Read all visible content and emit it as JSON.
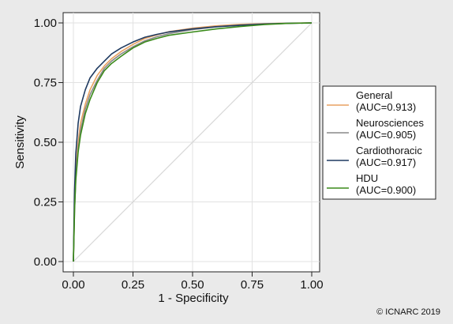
{
  "chart_data": {
    "type": "line",
    "xlabel": "1 - Specificity",
    "ylabel": "Sensitivity",
    "xlim": [
      0,
      1
    ],
    "ylim": [
      0,
      1
    ],
    "x_ticks": [
      "0.00",
      "0.25",
      "0.50",
      "0.75",
      "1.00"
    ],
    "y_ticks": [
      "0.00",
      "0.25",
      "0.50",
      "0.75",
      "1.00"
    ],
    "grid": true,
    "legend_position": "right",
    "reference_line": {
      "x": [
        0,
        1
      ],
      "y": [
        0,
        1
      ],
      "color": "#d8d8d8"
    },
    "series": [
      {
        "label_line1": "General",
        "label_line2": "(AUC=0.913)",
        "color": "#e8a060",
        "x": [
          0,
          0.005,
          0.01,
          0.02,
          0.03,
          0.05,
          0.07,
          0.1,
          0.13,
          0.16,
          0.2,
          0.25,
          0.3,
          0.35,
          0.4,
          0.5,
          0.6,
          0.7,
          0.8,
          0.9,
          1.0
        ],
        "y": [
          0,
          0.25,
          0.38,
          0.5,
          0.58,
          0.66,
          0.72,
          0.78,
          0.82,
          0.85,
          0.88,
          0.91,
          0.935,
          0.95,
          0.963,
          0.978,
          0.988,
          0.994,
          0.997,
          0.999,
          1.0
        ]
      },
      {
        "label_line1": "Neurosciences",
        "label_line2": "(AUC=0.905)",
        "color": "#888888",
        "x": [
          0,
          0.005,
          0.01,
          0.02,
          0.03,
          0.05,
          0.07,
          0.1,
          0.13,
          0.16,
          0.2,
          0.25,
          0.3,
          0.35,
          0.4,
          0.5,
          0.6,
          0.7,
          0.8,
          0.9,
          1.0
        ],
        "y": [
          0,
          0.22,
          0.35,
          0.47,
          0.55,
          0.64,
          0.7,
          0.76,
          0.81,
          0.84,
          0.87,
          0.9,
          0.925,
          0.942,
          0.955,
          0.972,
          0.984,
          0.991,
          0.996,
          0.999,
          1.0
        ]
      },
      {
        "label_line1": "Cardiothoracic",
        "label_line2": "(AUC=0.917)",
        "color": "#1f3a60",
        "x": [
          0,
          0.005,
          0.01,
          0.02,
          0.03,
          0.05,
          0.07,
          0.1,
          0.13,
          0.16,
          0.2,
          0.25,
          0.3,
          0.35,
          0.4,
          0.5,
          0.6,
          0.7,
          0.8,
          0.9,
          1.0
        ],
        "y": [
          0,
          0.3,
          0.45,
          0.58,
          0.65,
          0.72,
          0.77,
          0.81,
          0.84,
          0.87,
          0.895,
          0.92,
          0.94,
          0.952,
          0.962,
          0.975,
          0.984,
          0.99,
          0.995,
          0.998,
          1.0
        ]
      },
      {
        "label_line1": "HDU",
        "label_line2": "(AUC=0.900)",
        "color": "#3a8a1a",
        "x": [
          0,
          0.005,
          0.01,
          0.02,
          0.03,
          0.05,
          0.07,
          0.1,
          0.13,
          0.16,
          0.2,
          0.25,
          0.3,
          0.35,
          0.4,
          0.5,
          0.6,
          0.7,
          0.8,
          0.9,
          1.0
        ],
        "y": [
          0,
          0.22,
          0.34,
          0.46,
          0.53,
          0.62,
          0.68,
          0.75,
          0.8,
          0.83,
          0.86,
          0.895,
          0.92,
          0.935,
          0.948,
          0.962,
          0.975,
          0.985,
          0.993,
          0.998,
          1.0
        ]
      }
    ]
  },
  "copyright": "© ICNARC 2019"
}
